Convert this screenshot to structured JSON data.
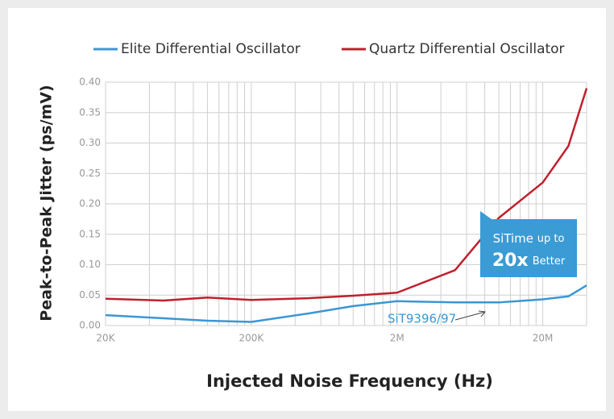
{
  "chart_data": {
    "type": "line",
    "x_label": "Injected Noise Frequency (Hz)",
    "y_label": "Peak-to-Peak Jitter (ps/mV)",
    "x": [
      20000,
      50000,
      100000,
      200000,
      500000,
      1000000,
      2000000,
      5000000,
      10000000,
      20000000,
      30000000,
      40000000
    ],
    "series": [
      {
        "name": "Elite Differential Oscillator",
        "color": "#3a97d4",
        "values": [
          0.017,
          0.012,
          0.008,
          0.006,
          0.02,
          0.032,
          0.04,
          0.038,
          0.038,
          0.043,
          0.048,
          0.066
        ]
      },
      {
        "name": "Quartz Differential Oscillator",
        "color": "#c0202e",
        "values": [
          0.044,
          0.041,
          0.046,
          0.042,
          0.045,
          0.049,
          0.054,
          0.091,
          0.177,
          0.235,
          0.295,
          0.39
        ]
      }
    ],
    "xlim": [
      20000,
      40000000
    ],
    "x_log": true,
    "xticks": [
      {
        "value": 20000,
        "label": "20K"
      },
      {
        "value": 200000,
        "label": "200K"
      },
      {
        "value": 2000000,
        "label": "2M"
      },
      {
        "value": 20000000,
        "label": "20M"
      }
    ],
    "ylim": [
      0,
      0.4
    ],
    "yticks": [
      {
        "value": 0,
        "label": "0.00"
      },
      {
        "value": 0.05,
        "label": "0.05"
      },
      {
        "value": 0.1,
        "label": "0.10"
      },
      {
        "value": 0.15,
        "label": "0.15"
      },
      {
        "value": 0.2,
        "label": "0.20"
      },
      {
        "value": 0.25,
        "label": "0.25"
      },
      {
        "value": 0.3,
        "label": "0.30"
      },
      {
        "value": 0.35,
        "label": "0.35"
      },
      {
        "value": 0.4,
        "label": "0.40"
      }
    ],
    "grid": true,
    "annotations": {
      "part_label": "SiT9396/97",
      "callout_brand": "SiTime",
      "callout_pre": "up to",
      "callout_factor": "20x",
      "callout_post": "Better"
    }
  }
}
